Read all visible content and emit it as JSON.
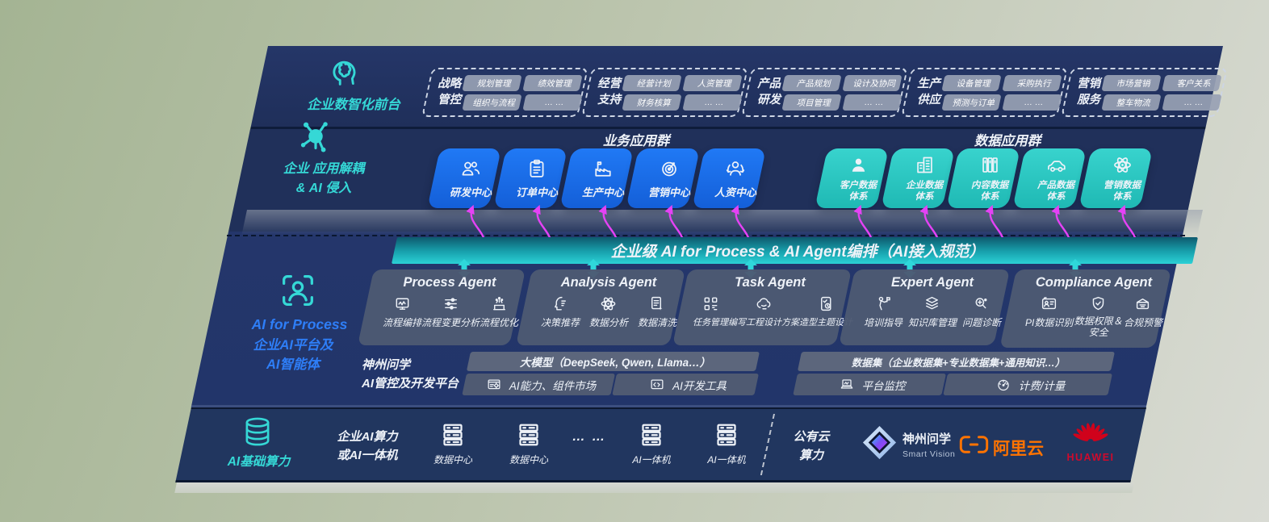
{
  "colors": {
    "accent_cyan": "#35d8d6",
    "accent_blue": "#2e7ef7",
    "tile_blue": "#1a6ff0",
    "tile_teal": "#2bc9c4",
    "bar_teal": "#2bd1d6",
    "arrow_magenta": "#e542f5",
    "aliyun_orange": "#ff7300",
    "huawei_red": "#cf0a2c"
  },
  "layer_front": {
    "label": "企业数智化前台",
    "groups": [
      {
        "title": "战略\n管控",
        "pills": [
          "规划管理",
          "绩效管理",
          "组织与流程",
          "… …"
        ]
      },
      {
        "title": "经营\n支持",
        "pills": [
          "经营计划",
          "人资管理",
          "财务核算",
          "… …"
        ]
      },
      {
        "title": "产品\n研发",
        "pills": [
          "产品规划",
          "设计及协同",
          "项目管理",
          "… …"
        ]
      },
      {
        "title": "生产\n供应",
        "pills": [
          "设备管理",
          "采购执行",
          "预测与订单",
          "… …"
        ]
      },
      {
        "title": "营销\n服务",
        "pills": [
          "市场营销",
          "客户关系",
          "整车物流",
          "… …"
        ]
      }
    ]
  },
  "layer_apps": {
    "label": "企业 应用解耦\n& AI 侵入",
    "business": {
      "title": "业务应用群",
      "tiles": [
        {
          "label": "研发中心",
          "icon": "team-icon"
        },
        {
          "label": "订单中心",
          "icon": "clipboard-icon"
        },
        {
          "label": "生产中心",
          "icon": "factory-icon"
        },
        {
          "label": "营销中心",
          "icon": "target-icon"
        },
        {
          "label": "人资中心",
          "icon": "hr-icon"
        }
      ]
    },
    "data": {
      "title": "数据应用群",
      "tiles": [
        {
          "label": "客户数据\n体系",
          "icon": "user-icon"
        },
        {
          "label": "企业数据\n体系",
          "icon": "building-icon"
        },
        {
          "label": "内容数据\n体系",
          "icon": "books-icon"
        },
        {
          "label": "产品数据\n体系",
          "icon": "car-icon"
        },
        {
          "label": "营销数据\n体系",
          "icon": "atom-icon"
        }
      ]
    }
  },
  "ai_bar": {
    "text": "企业级 AI for Process & AI Agent编排（AI接入规范）"
  },
  "layer_platform": {
    "label_en": "AI for Process",
    "label_zh": "企业AI平台及\nAI智能体",
    "agents": [
      {
        "title": "Process Agent",
        "items": [
          {
            "label": "流程编排",
            "icon": "flow-monitor-icon"
          },
          {
            "label": "流程变更分析",
            "icon": "sliders-icon"
          },
          {
            "label": "流程优化",
            "icon": "optimize-icon"
          }
        ]
      },
      {
        "title": "Analysis Agent",
        "items": [
          {
            "label": "决策推荐",
            "icon": "decision-head-icon"
          },
          {
            "label": "数据分析",
            "icon": "atom-icon"
          },
          {
            "label": "数据清洗",
            "icon": "data-clean-icon"
          }
        ]
      },
      {
        "title": "Task Agent",
        "items": [
          {
            "label": "任务管理",
            "icon": "task-grid-icon"
          },
          {
            "label": "编写工程设计方案",
            "icon": "cloud-edit-icon"
          },
          {
            "label": "造型主题设计",
            "icon": "design-board-icon"
          }
        ]
      },
      {
        "title": "Expert Agent",
        "items": [
          {
            "label": "培训指导",
            "icon": "training-icon"
          },
          {
            "label": "知识库管理",
            "icon": "knowledge-layers-icon"
          },
          {
            "label": "问题诊断",
            "icon": "diagnosis-icon"
          }
        ]
      },
      {
        "title": "Compliance Agent",
        "items": [
          {
            "label": "PI数据识别",
            "icon": "id-card-icon"
          },
          {
            "label": "数据权限＆\n安全",
            "icon": "data-security-icon"
          },
          {
            "label": "合规预警",
            "icon": "alert-mail-icon"
          }
        ]
      }
    ],
    "platform": {
      "name": "神州问学\nAI管控及开发平台",
      "model_header": "大模型（DeepSeek, Qwen, Llama…）",
      "model_cells": [
        {
          "label": "AI能力、组件市场",
          "icon": "components-icon"
        },
        {
          "label": "AI开发工具",
          "icon": "dev-tools-icon"
        }
      ],
      "data_header": "数据集（企业数据集+专业数据集+通用知识…）",
      "data_cells": [
        {
          "label": "平台监控",
          "icon": "laptop-icon"
        },
        {
          "label": "计费/计量",
          "icon": "gauge-icon"
        }
      ]
    }
  },
  "layer_infra": {
    "label": "AI基础算力",
    "compute_label": "企业AI算力\n或AI一体机",
    "nodes": [
      {
        "label": "数据中心",
        "icon": "server-icon"
      },
      {
        "label": "数据中心",
        "icon": "server-icon"
      },
      {
        "label": "… …",
        "icon": ""
      },
      {
        "label": "AI一体机",
        "icon": "server-icon"
      },
      {
        "label": "AI一体机",
        "icon": "server-icon"
      }
    ],
    "public_cloud": "公有云\n算力",
    "logos": {
      "smartvision": {
        "name": "神州问学",
        "subtitle": "Smart Vision"
      },
      "aliyun": {
        "name": "阿里云"
      },
      "huawei": {
        "name": "HUAWEI"
      }
    }
  }
}
